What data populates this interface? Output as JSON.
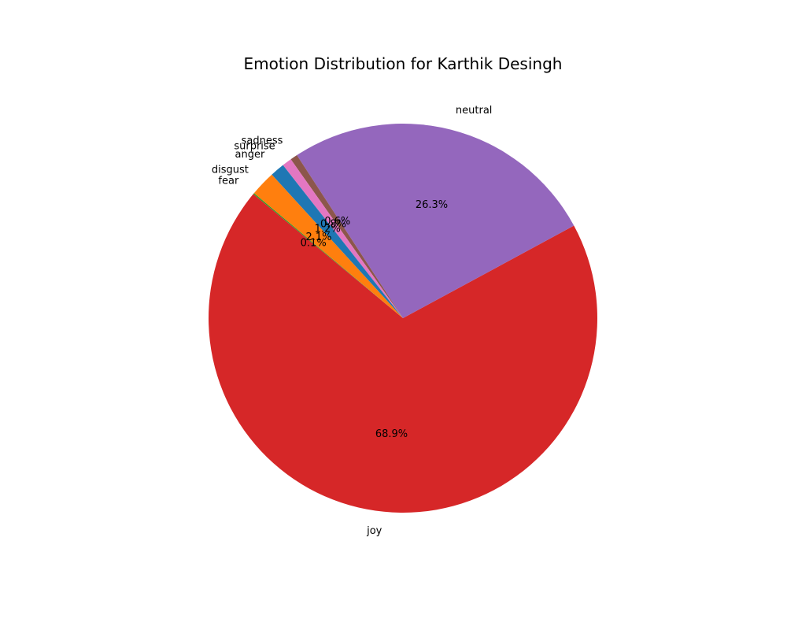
{
  "chart_data": {
    "type": "pie",
    "title": "Emotion Distribution for Karthik Desingh",
    "start_angle_deg": 140,
    "direction": "counterclockwise",
    "slices": [
      {
        "label": "fear",
        "value": 0.1,
        "pct_label": "0.1%",
        "color": "#2ca02c"
      },
      {
        "label": "joy",
        "value": 68.9,
        "pct_label": "68.9%",
        "color": "#d62728"
      },
      {
        "label": "neutral",
        "value": 26.3,
        "pct_label": "26.3%",
        "color": "#9467bd"
      },
      {
        "label": "sadness",
        "value": 0.6,
        "pct_label": "0.6%",
        "color": "#8c564b"
      },
      {
        "label": "surprise",
        "value": 0.8,
        "pct_label": "0.8%",
        "color": "#e377c2"
      },
      {
        "label": "anger",
        "value": 1.2,
        "pct_label": "1.2%",
        "color": "#1f77b4"
      },
      {
        "label": "disgust",
        "value": 2.1,
        "pct_label": "2.1%",
        "color": "#ff7f0e"
      }
    ]
  }
}
